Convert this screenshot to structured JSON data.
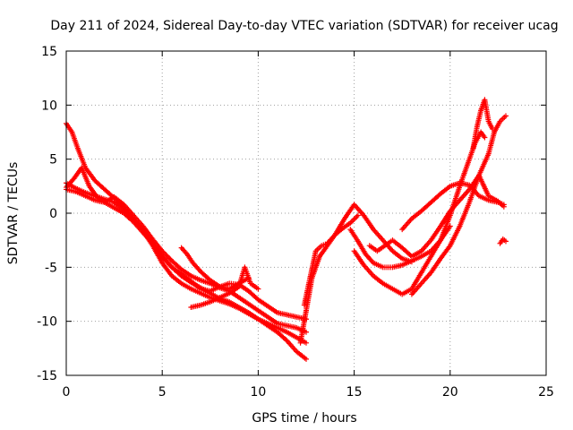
{
  "chart_data": {
    "type": "scatter",
    "title": "Day 211 of 2024, Sidereal Day-to-day VTEC variation (SDTVAR) for receiver ucag",
    "xlabel": "GPS time / hours",
    "ylabel": "SDTVAR / TECUs",
    "xlim": [
      0,
      25
    ],
    "ylim": [
      -15,
      15
    ],
    "xticks": [
      "0",
      "5",
      "10",
      "15",
      "20",
      "25"
    ],
    "yticks": [
      "-15",
      "-10",
      "-5",
      "0",
      "5",
      "10",
      "15"
    ],
    "grid": true,
    "marker": "+",
    "color": "#ff0000",
    "series": [
      {
        "name": "track-1",
        "x": [
          0.0,
          0.3,
          0.6,
          1.0,
          1.5,
          2.0,
          2.5,
          3.0,
          3.5,
          4.0,
          4.5,
          5.0,
          5.5,
          6.0,
          6.5,
          7.0,
          7.5,
          8.0,
          8.5,
          9.0,
          9.5,
          10.0,
          10.5,
          11.0,
          11.5,
          12.0,
          12.5
        ],
        "y": [
          8.3,
          7.5,
          6.0,
          4.2,
          3.0,
          2.2,
          1.4,
          0.5,
          -0.5,
          -1.6,
          -3.0,
          -4.6,
          -5.8,
          -6.5,
          -7.0,
          -7.4,
          -7.8,
          -8.1,
          -8.4,
          -8.8,
          -9.3,
          -9.8,
          -10.4,
          -11.0,
          -11.8,
          -12.8,
          -13.5
        ]
      },
      {
        "name": "track-2",
        "x": [
          0.0,
          0.4,
          0.8,
          1.2,
          1.6,
          2.0,
          2.5,
          3.0,
          3.5,
          4.0,
          4.5,
          5.0,
          5.5,
          6.0,
          6.5,
          7.0,
          7.5,
          8.0,
          8.5,
          9.0,
          9.5,
          10.0,
          10.5,
          11.0,
          11.5,
          12.0,
          12.5
        ],
        "y": [
          2.4,
          3.2,
          4.2,
          2.5,
          1.5,
          1.0,
          0.5,
          0.0,
          -0.8,
          -1.8,
          -2.8,
          -4.0,
          -5.0,
          -5.8,
          -6.4,
          -6.9,
          -7.4,
          -7.9,
          -8.2,
          -8.7,
          -9.2,
          -9.8,
          -10.2,
          -10.6,
          -11.0,
          -11.5,
          -12.0
        ]
      },
      {
        "name": "track-3",
        "x": [
          0.0,
          0.5,
          1.0,
          1.5,
          2.0,
          2.5,
          3.0,
          3.5,
          4.0,
          4.5,
          5.0,
          5.5,
          6.0,
          6.5,
          7.0,
          7.5,
          8.0,
          8.5,
          9.0,
          9.5,
          10.0,
          10.5,
          11.0,
          11.5,
          12.0,
          12.5
        ],
        "y": [
          2.2,
          2.0,
          1.6,
          1.2,
          1.0,
          1.5,
          0.8,
          -0.2,
          -1.2,
          -2.4,
          -3.5,
          -4.4,
          -5.2,
          -5.8,
          -6.2,
          -6.5,
          -6.9,
          -7.2,
          -7.8,
          -8.4,
          -9.0,
          -9.6,
          -10.2,
          -10.4,
          -10.6,
          -11.0
        ]
      },
      {
        "name": "track-4",
        "x": [
          0.0,
          0.5,
          1.0,
          1.5,
          2.0,
          2.5,
          3.0,
          3.5,
          4.0,
          4.5,
          5.0,
          5.5,
          6.0,
          6.5,
          7.0,
          7.5,
          8.0,
          8.5,
          9.0,
          9.5,
          10.0,
          10.5,
          11.0,
          11.5,
          12.0,
          12.5
        ],
        "y": [
          2.8,
          2.3,
          1.9,
          1.6,
          1.3,
          1.0,
          0.3,
          -0.6,
          -1.6,
          -2.8,
          -4.0,
          -5.0,
          -5.6,
          -6.3,
          -7.0,
          -7.2,
          -6.8,
          -6.5,
          -6.6,
          -7.2,
          -8.0,
          -8.6,
          -9.2,
          -9.4,
          -9.6,
          -9.8
        ]
      },
      {
        "name": "track-5",
        "x": [
          6.0,
          6.3,
          6.6,
          7.0,
          7.5,
          8.0,
          8.5,
          9.0,
          9.5
        ],
        "y": [
          -3.2,
          -3.8,
          -4.6,
          -5.4,
          -6.2,
          -6.8,
          -7.0,
          -6.5,
          -6.0
        ]
      },
      {
        "name": "track-6",
        "x": [
          6.5,
          7.0,
          7.5,
          8.0,
          8.5,
          9.0,
          9.3,
          9.6,
          10.0
        ],
        "y": [
          -8.7,
          -8.5,
          -8.2,
          -7.8,
          -7.4,
          -6.8,
          -5.0,
          -6.5,
          -7.0
        ]
      },
      {
        "name": "track-7",
        "x": [
          12.4,
          12.7,
          13.0,
          13.3,
          13.6,
          14.0,
          14.4,
          14.8,
          15.2
        ],
        "y": [
          -8.5,
          -6.0,
          -3.5,
          -3.0,
          -2.8,
          -2.0,
          -1.4,
          -0.9,
          -0.2
        ]
      },
      {
        "name": "track-8",
        "x": [
          12.2,
          12.5,
          12.8,
          13.2,
          13.6,
          14.0,
          14.5,
          15.0,
          15.5,
          16.0,
          16.5,
          17.0,
          17.5,
          18.0
        ],
        "y": [
          -12.0,
          -9.0,
          -6.0,
          -4.0,
          -3.0,
          -2.0,
          -0.5,
          0.8,
          -0.2,
          -1.5,
          -2.5,
          -3.5,
          -4.2,
          -4.5
        ]
      },
      {
        "name": "track-9",
        "x": [
          14.8,
          15.2,
          15.6,
          16.0,
          16.5,
          17.0,
          17.5,
          18.0,
          18.5,
          19.0,
          19.5,
          20.0
        ],
        "y": [
          -1.5,
          -2.6,
          -3.8,
          -4.6,
          -5.0,
          -5.0,
          -4.8,
          -4.4,
          -4.0,
          -3.5,
          -2.5,
          -1.2
        ]
      },
      {
        "name": "track-10",
        "x": [
          15.0,
          15.5,
          16.0,
          16.5,
          17.0,
          17.5,
          18.0,
          18.5,
          19.0,
          19.5,
          20.0,
          20.5,
          21.0,
          21.3,
          21.6,
          21.8
        ],
        "y": [
          -3.5,
          -4.8,
          -5.8,
          -6.5,
          -7.0,
          -7.5,
          -7.0,
          -5.5,
          -4.0,
          -2.5,
          -0.2,
          2.5,
          5.0,
          6.5,
          7.5,
          7.0
        ]
      },
      {
        "name": "track-11",
        "x": [
          15.8,
          16.2,
          16.6,
          17.0,
          17.5,
          18.0,
          18.5,
          19.0,
          19.5,
          20.0,
          20.5,
          21.0,
          21.5,
          22.0,
          22.5,
          22.8
        ],
        "y": [
          -3.0,
          -3.5,
          -3.0,
          -2.5,
          -3.2,
          -4.0,
          -3.5,
          -2.5,
          -1.2,
          0.2,
          1.2,
          2.2,
          3.5,
          1.6,
          1.1,
          0.6
        ]
      },
      {
        "name": "track-12",
        "x": [
          17.5,
          18.0,
          18.5,
          19.0,
          19.5,
          20.0,
          20.5,
          21.0,
          21.5,
          22.0,
          22.5,
          22.8
        ],
        "y": [
          -1.5,
          -0.5,
          0.2,
          1.0,
          1.8,
          2.5,
          2.8,
          2.6,
          1.6,
          1.2,
          1.0,
          0.8
        ]
      },
      {
        "name": "track-13",
        "x": [
          18.0,
          18.5,
          19.0,
          19.5,
          20.0,
          20.5,
          21.0,
          21.5,
          22.0,
          22.3,
          22.6,
          22.9
        ],
        "y": [
          -7.5,
          -6.5,
          -5.5,
          -4.2,
          -3.0,
          -1.2,
          1.0,
          3.5,
          5.5,
          7.5,
          8.5,
          9.0
        ]
      },
      {
        "name": "track-14",
        "x": [
          21.2,
          21.4,
          21.6,
          21.8,
          22.0,
          22.2
        ],
        "y": [
          6.0,
          8.0,
          9.5,
          10.5,
          8.5,
          7.8
        ]
      },
      {
        "name": "track-15",
        "x": [
          22.6,
          22.75,
          22.9
        ],
        "y": [
          -2.8,
          -2.4,
          -2.6
        ]
      }
    ]
  }
}
